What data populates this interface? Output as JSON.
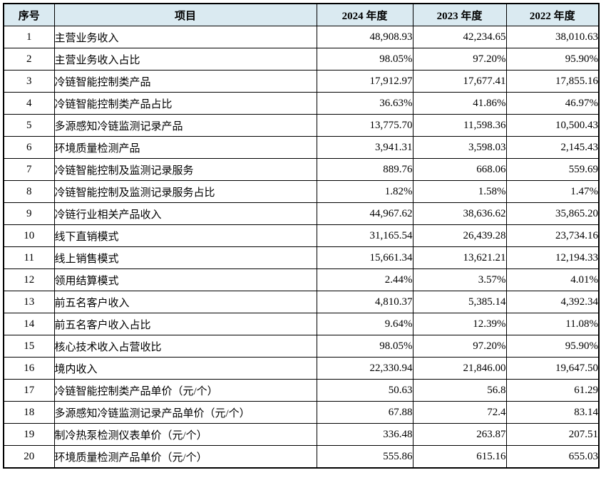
{
  "colors": {
    "header_bg": "#daeaf1",
    "border": "#000000",
    "text": "#000000",
    "page_bg": "#ffffff"
  },
  "table": {
    "headers": {
      "no": "序号",
      "item": "项目",
      "y2024": "2024 年度",
      "y2023": "2023 年度",
      "y2022": "2022 年度"
    },
    "rows": [
      {
        "no": "1",
        "item": "主营业务收入",
        "y2024": "48,908.93",
        "y2023": "42,234.65",
        "y2022": "38,010.63"
      },
      {
        "no": "2",
        "item": "主营业务收入占比",
        "y2024": "98.05%",
        "y2023": "97.20%",
        "y2022": "95.90%"
      },
      {
        "no": "3",
        "item": "冷链智能控制类产品",
        "y2024": "17,912.97",
        "y2023": "17,677.41",
        "y2022": "17,855.16"
      },
      {
        "no": "4",
        "item": "冷链智能控制类产品占比",
        "y2024": "36.63%",
        "y2023": "41.86%",
        "y2022": "46.97%"
      },
      {
        "no": "5",
        "item": "多源感知冷链监测记录产品",
        "y2024": "13,775.70",
        "y2023": "11,598.36",
        "y2022": "10,500.43"
      },
      {
        "no": "6",
        "item": "环境质量检测产品",
        "y2024": "3,941.31",
        "y2023": "3,598.03",
        "y2022": "2,145.43"
      },
      {
        "no": "7",
        "item": "冷链智能控制及监测记录服务",
        "y2024": "889.76",
        "y2023": "668.06",
        "y2022": "559.69"
      },
      {
        "no": "8",
        "item": "冷链智能控制及监测记录服务占比",
        "y2024": "1.82%",
        "y2023": "1.58%",
        "y2022": "1.47%"
      },
      {
        "no": "9",
        "item": "冷链行业相关产品收入",
        "y2024": "44,967.62",
        "y2023": "38,636.62",
        "y2022": "35,865.20"
      },
      {
        "no": "10",
        "item": "线下直销模式",
        "y2024": "31,165.54",
        "y2023": "26,439.28",
        "y2022": "23,734.16"
      },
      {
        "no": "11",
        "item": "线上销售模式",
        "y2024": "15,661.34",
        "y2023": "13,621.21",
        "y2022": "12,194.33"
      },
      {
        "no": "12",
        "item": "领用结算模式",
        "y2024": "2.44%",
        "y2023": "3.57%",
        "y2022": "4.01%"
      },
      {
        "no": "13",
        "item": "前五名客户收入",
        "y2024": "4,810.37",
        "y2023": "5,385.14",
        "y2022": "4,392.34"
      },
      {
        "no": "14",
        "item": "前五名客户收入占比",
        "y2024": "9.64%",
        "y2023": "12.39%",
        "y2022": "11.08%"
      },
      {
        "no": "15",
        "item": "核心技术收入占营收比",
        "y2024": "98.05%",
        "y2023": "97.20%",
        "y2022": "95.90%"
      },
      {
        "no": "16",
        "item": "境内收入",
        "y2024": "22,330.94",
        "y2023": "21,846.00",
        "y2022": "19,647.50"
      },
      {
        "no": "17",
        "item": "冷链智能控制类产品单价（元/个）",
        "y2024": "50.63",
        "y2023": "56.8",
        "y2022": "61.29"
      },
      {
        "no": "18",
        "item": "多源感知冷链监测记录产品单价（元/个）",
        "y2024": "67.88",
        "y2023": "72.4",
        "y2022": "83.14"
      },
      {
        "no": "19",
        "item": "制冷热泵检测仪表单价（元/个）",
        "y2024": "336.48",
        "y2023": "263.87",
        "y2022": "207.51"
      },
      {
        "no": "20",
        "item": "环境质量检测产品单价（元/个）",
        "y2024": "555.86",
        "y2023": "615.16",
        "y2022": "655.03"
      }
    ]
  }
}
